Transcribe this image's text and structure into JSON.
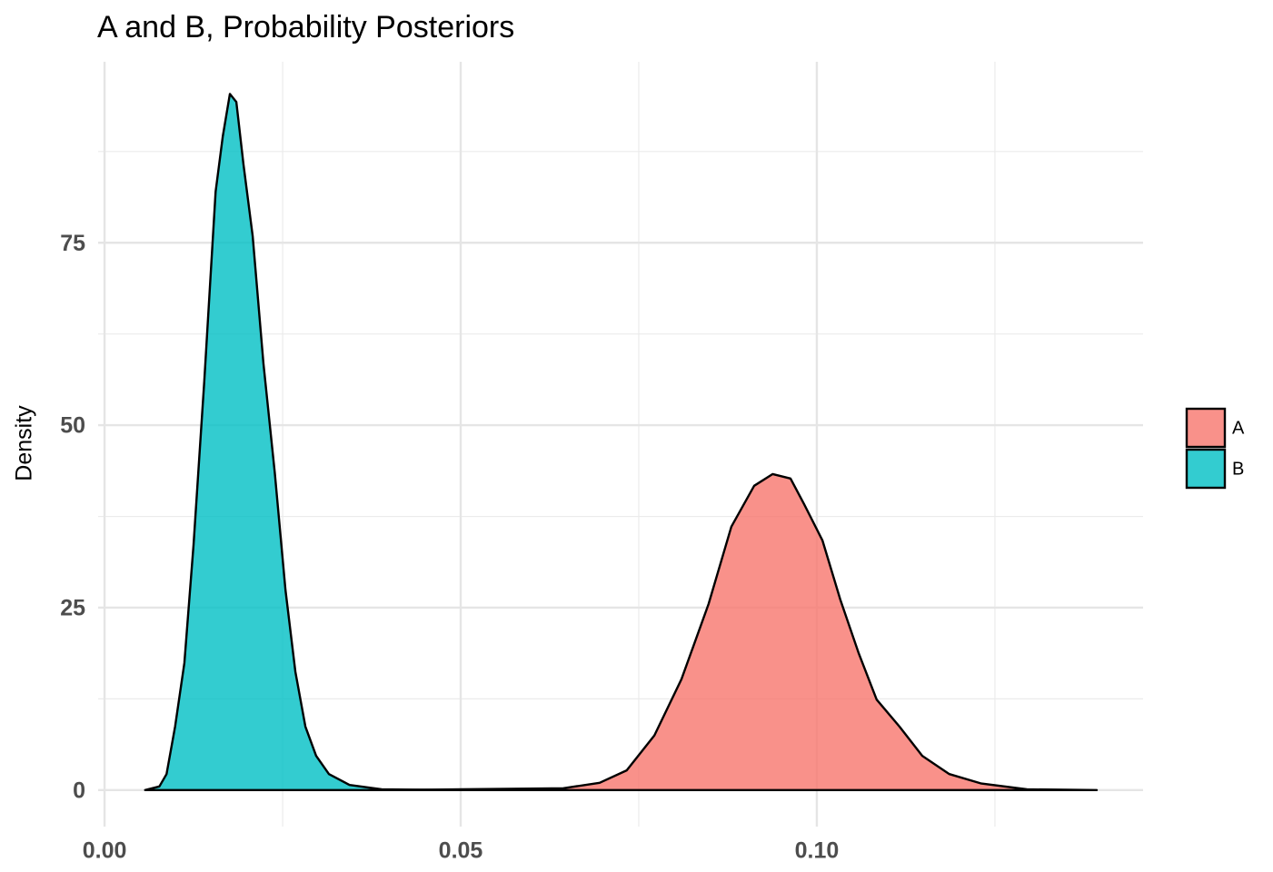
{
  "chart_data": {
    "type": "area",
    "title": "A and B, Probability Posteriors",
    "y_label": "Density",
    "xlim": [
      -0.0009,
      0.1458
    ],
    "ylim": [
      -5,
      99.8
    ],
    "xticks": [
      {
        "value": 0,
        "label": "0.00"
      },
      {
        "value": 0.05,
        "label": "0.05"
      },
      {
        "value": 0.1,
        "label": "0.10"
      }
    ],
    "yticks": [
      0,
      25,
      50,
      75
    ],
    "minor_xticks": [
      0.025,
      0.075,
      0.125
    ],
    "minor_yticks": [
      12.5,
      37.5,
      62.5,
      87.5
    ],
    "grid": true,
    "legend": "right",
    "series": [
      {
        "name": "A",
        "color": "#F8766D",
        "x": [
          0.0402,
          0.0644,
          0.0695,
          0.0733,
          0.0772,
          0.081,
          0.0848,
          0.088,
          0.0912,
          0.0938,
          0.0963,
          0.0982,
          0.1008,
          0.1033,
          0.1059,
          0.1084,
          0.1116,
          0.1148,
          0.1186,
          0.1231,
          0.1295,
          0.1393
        ],
        "values": [
          0,
          0.25,
          1.0,
          2.7,
          7.5,
          15.2,
          25.5,
          36.1,
          41.7,
          43.3,
          42.7,
          39.2,
          34.2,
          26.1,
          18.7,
          12.4,
          8.7,
          4.7,
          2.2,
          0.9,
          0.1,
          0
        ]
      },
      {
        "name": "B",
        "color": "#00BFC4",
        "x": [
          0.0057,
          0.0077,
          0.0087,
          0.0099,
          0.0112,
          0.0125,
          0.014,
          0.0156,
          0.0166,
          0.0176,
          0.0185,
          0.0195,
          0.0208,
          0.0223,
          0.0239,
          0.0254,
          0.0268,
          0.0282,
          0.0297,
          0.0315,
          0.0344,
          0.0389,
          0.049
        ],
        "values": [
          0,
          0.5,
          2.2,
          8.7,
          17.4,
          33.6,
          56,
          82,
          89.6,
          95.4,
          94.3,
          85.8,
          75.9,
          58.5,
          43.5,
          27.4,
          16.2,
          8.7,
          4.7,
          2.2,
          0.7,
          0.1,
          0
        ]
      }
    ]
  }
}
